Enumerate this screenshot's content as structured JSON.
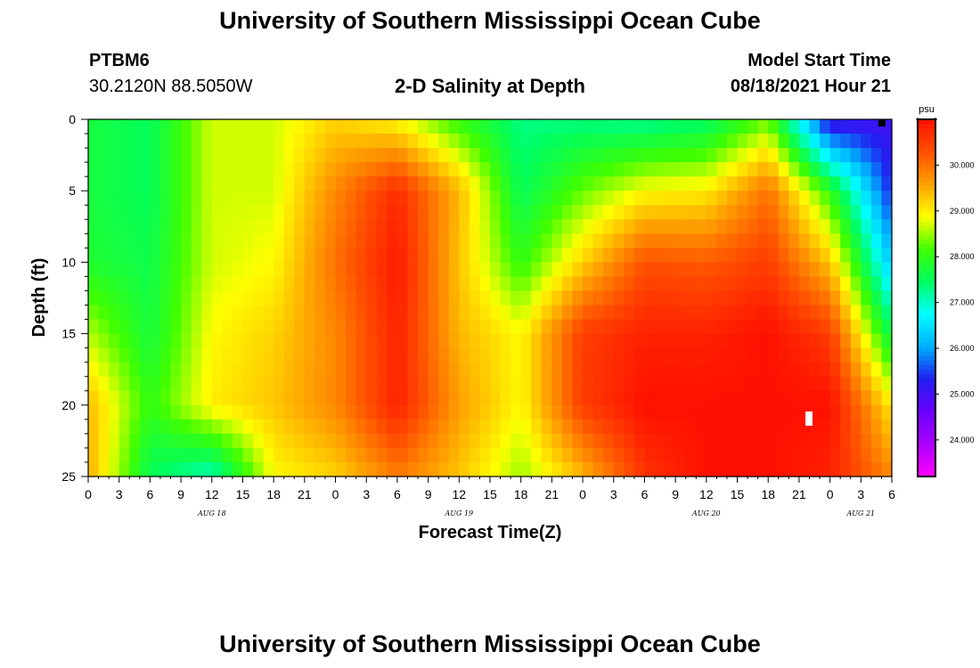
{
  "header": {
    "title": "University of Southern Mississippi Ocean Cube",
    "station": "PTBM6",
    "coords": "30.2120N  88.5050W",
    "chart_title": "2-D Salinity at Depth",
    "model_label": "Model Start Time",
    "model_time": "08/18/2021 Hour 21"
  },
  "footer": {
    "title": "University of Southern Mississippi Ocean Cube"
  },
  "colors": {
    "scale": [
      "#ff00ff",
      "#aa00ff",
      "#6a00ff",
      "#2020f0",
      "#00b0ff",
      "#00ffff",
      "#00ff60",
      "#40ff00",
      "#ffff00",
      "#ffa000",
      "#ff5000",
      "#ff1000"
    ]
  },
  "chart_data": {
    "type": "heatmap",
    "title": "2-D Salinity at Depth",
    "xlabel": "Forecast Time(Z)",
    "ylabel": "Depth (ft)",
    "x_tick_labels": [
      "0",
      "3",
      "6",
      "9",
      "12",
      "15",
      "18",
      "21",
      "0",
      "3",
      "6",
      "9",
      "12",
      "15",
      "18",
      "21",
      "0",
      "3",
      "6",
      "9",
      "12",
      "15",
      "18",
      "21",
      "0",
      "3",
      "6"
    ],
    "x_date_labels": [
      {
        "label": "AUG 18",
        "tick": 4
      },
      {
        "label": "AUG 19",
        "tick": 12
      },
      {
        "label": "AUG 20",
        "tick": 20
      },
      {
        "label": "AUG 21",
        "tick": 25
      }
    ],
    "y_ticks": [
      0,
      5,
      10,
      15,
      20,
      25
    ],
    "ylim": [
      25,
      0
    ],
    "colorbar": {
      "unit": "psu",
      "tick_labels": [
        "30.000",
        "29.000",
        "28.000",
        "27.000",
        "26.000",
        "25.000",
        "24.000"
      ],
      "tick_values": [
        30,
        29,
        28,
        27,
        26,
        25,
        24
      ],
      "range": [
        23.2,
        31.0
      ]
    },
    "time_hours": [
      0,
      6,
      12,
      18,
      24,
      30,
      36,
      42,
      48,
      54,
      60,
      66,
      72,
      78
    ],
    "depth_ft": [
      0,
      5,
      10,
      15,
      20,
      25
    ],
    "salinity_psu": [
      [
        27.7,
        27.5,
        28.7,
        28.7,
        29.2,
        28.9,
        28.0,
        27.3,
        27.3,
        27.2,
        27.4,
        28.3,
        25.0,
        25.0
      ],
      [
        27.7,
        27.5,
        28.7,
        28.7,
        29.8,
        30.7,
        29.4,
        27.5,
        28.3,
        28.9,
        29.0,
        30.0,
        28.0,
        25.3
      ],
      [
        27.8,
        27.6,
        28.7,
        28.9,
        30.0,
        30.9,
        29.3,
        28.0,
        29.2,
        30.3,
        30.2,
        30.5,
        29.3,
        26.2
      ],
      [
        28.6,
        27.7,
        28.9,
        29.2,
        29.8,
        30.8,
        29.4,
        28.9,
        30.5,
        30.8,
        30.8,
        31.0,
        30.5,
        27.5
      ],
      [
        29.4,
        28.0,
        29.0,
        29.3,
        29.8,
        30.8,
        29.6,
        28.9,
        30.5,
        31.0,
        31.0,
        31.0,
        31.0,
        29.0
      ],
      [
        29.5,
        27.5,
        27.0,
        28.9,
        29.2,
        29.9,
        29.3,
        28.5,
        29.4,
        30.6,
        31.0,
        31.0,
        30.8,
        29.8
      ]
    ]
  }
}
